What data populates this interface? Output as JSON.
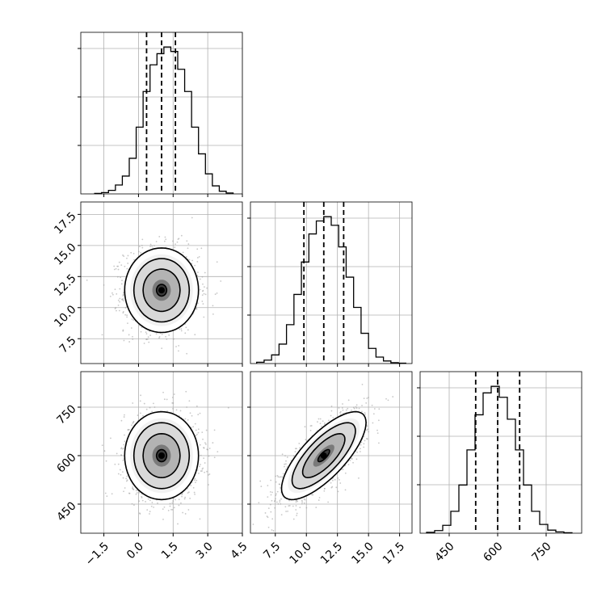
{
  "chart_data": {
    "type": "corner",
    "title": "",
    "grid": true,
    "quantile_lines": "dashed",
    "parameters": [
      {
        "name": "p0",
        "label": "",
        "range": [
          -2.5,
          4.5
        ],
        "ticks": [
          "−1.5",
          "0.0",
          "1.5",
          "3.0",
          "4.5"
        ],
        "tick_values": [
          -1.5,
          0.0,
          1.5,
          3.0,
          4.5
        ],
        "quantiles": [
          0.35,
          1.0,
          1.6
        ],
        "mean": 1.0,
        "std": 0.8
      },
      {
        "name": "p1",
        "label": "",
        "range": [
          5.5,
          18.5
        ],
        "ticks": [
          "7.5",
          "10.0",
          "12.5",
          "15.0",
          "17.5"
        ],
        "tick_values": [
          7.5,
          10.0,
          12.5,
          15.0,
          17.5
        ],
        "quantiles": [
          9.8,
          11.4,
          13.0
        ],
        "mean": 11.4,
        "std": 1.7
      },
      {
        "name": "p2",
        "label": "",
        "range": [
          360,
          860
        ],
        "ticks": [
          "450",
          "600",
          "750"
        ],
        "tick_values": [
          450,
          600,
          750
        ],
        "quantiles": [
          532,
          600,
          668
        ],
        "mean": 600,
        "std": 68
      }
    ],
    "histograms": [
      {
        "parameter": "p0",
        "bin_edges": [
          -1.9,
          -1.6,
          -1.3,
          -1.0,
          -0.7,
          -0.4,
          -0.1,
          0.2,
          0.5,
          0.8,
          1.1,
          1.4,
          1.7,
          2.0,
          2.3,
          2.6,
          2.9,
          3.2,
          3.5,
          3.8,
          4.1
        ],
        "counts": [
          1,
          3,
          8,
          20,
          40,
          80,
          150,
          230,
          290,
          315,
          330,
          320,
          280,
          230,
          150,
          90,
          45,
          18,
          6,
          2
        ]
      },
      {
        "parameter": "p1",
        "bin_edges": [
          6.0,
          6.6,
          7.2,
          7.8,
          8.4,
          9.0,
          9.6,
          10.2,
          10.8,
          11.4,
          12.0,
          12.6,
          13.2,
          13.8,
          14.4,
          15.0,
          15.6,
          16.2,
          16.8,
          17.4,
          18.0
        ],
        "counts": [
          3,
          8,
          20,
          45,
          90,
          160,
          235,
          300,
          330,
          340,
          320,
          270,
          200,
          130,
          70,
          35,
          15,
          6,
          2,
          1
        ]
      },
      {
        "parameter": "p2",
        "bin_edges": [
          380,
          405,
          430,
          455,
          480,
          505,
          530,
          555,
          580,
          605,
          630,
          655,
          680,
          705,
          730,
          755,
          780,
          805,
          830
        ],
        "counts": [
          2,
          6,
          18,
          50,
          110,
          190,
          270,
          320,
          335,
          310,
          260,
          190,
          110,
          50,
          20,
          7,
          3,
          1
        ]
      }
    ],
    "pairs": [
      {
        "x": "p0",
        "y": "p1",
        "correlation": 0.0
      },
      {
        "x": "p0",
        "y": "p2",
        "correlation": 0.0
      },
      {
        "x": "p1",
        "y": "p2",
        "correlation": 0.75
      }
    ],
    "contour_levels_sigma": [
      0.5,
      1.0,
      1.5,
      2.0
    ]
  }
}
